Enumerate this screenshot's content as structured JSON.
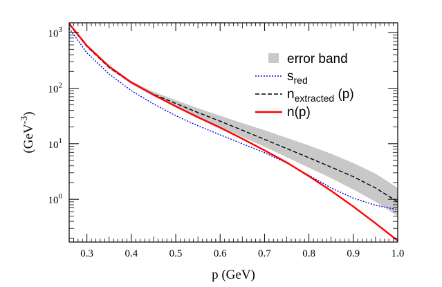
{
  "chart_data": {
    "type": "line",
    "xlabel": "p (GeV)",
    "ylabel": "(GeV",
    "ylabel_sup": "-3",
    "ylabel_close": ")",
    "xlim": [
      0.26,
      1.0
    ],
    "ylim": [
      0.17,
      1500
    ],
    "yscale": "log",
    "grid": false,
    "legend_position": "top-right",
    "x_ticks": [
      {
        "value": 0.3,
        "label": "0.3"
      },
      {
        "value": 0.4,
        "label": "0.4"
      },
      {
        "value": 0.5,
        "label": "0.5"
      },
      {
        "value": 0.6,
        "label": "0.6"
      },
      {
        "value": 0.7,
        "label": "0.7"
      },
      {
        "value": 0.8,
        "label": "0.8"
      },
      {
        "value": 0.9,
        "label": "0.9"
      },
      {
        "value": 1.0,
        "label": "1.0"
      }
    ],
    "y_ticks": [
      {
        "value": 1,
        "base": "10",
        "exp": "0"
      },
      {
        "value": 10,
        "base": "10",
        "exp": "1"
      },
      {
        "value": 100,
        "base": "10",
        "exp": "2"
      },
      {
        "value": 1000,
        "base": "10",
        "exp": "3"
      }
    ],
    "legend": [
      {
        "key": "error_band",
        "label": "error band",
        "sub": ""
      },
      {
        "key": "s_red",
        "label": "s",
        "sub": "red"
      },
      {
        "key": "n_extracted",
        "label": "n",
        "sub": "extracted",
        "suffix": " (p)"
      },
      {
        "key": "n_p",
        "label": "n(p)",
        "sub": ""
      }
    ],
    "series": [
      {
        "key": "s_red",
        "color": "#0000ee",
        "dash": "dotted",
        "x": [
          0.26,
          0.3,
          0.35,
          0.4,
          0.45,
          0.5,
          0.55,
          0.6,
          0.65,
          0.7,
          0.75,
          0.8,
          0.85,
          0.9,
          0.95,
          1.0
        ],
        "y": [
          1200,
          430,
          180,
          90,
          52,
          32,
          21,
          14.5,
          10,
          6.9,
          4.5,
          2.7,
          1.6,
          1.05,
          0.78,
          0.65
        ]
      },
      {
        "key": "n_extracted",
        "color": "#000000",
        "dash": "dashed",
        "x": [
          0.26,
          0.3,
          0.35,
          0.4,
          0.45,
          0.5,
          0.55,
          0.6,
          0.65,
          0.7,
          0.75,
          0.8,
          0.85,
          0.9,
          0.95,
          1.0
        ],
        "y": [
          1400,
          560,
          235,
          125,
          78,
          53,
          36.5,
          25.5,
          17.5,
          12,
          8.2,
          5.6,
          3.8,
          2.55,
          1.6,
          0.9
        ]
      },
      {
        "key": "n_p",
        "color": "#ff0000",
        "dash": "solid",
        "x": [
          0.26,
          0.3,
          0.35,
          0.4,
          0.45,
          0.5,
          0.55,
          0.6,
          0.65,
          0.7,
          0.75,
          0.8,
          0.85,
          0.9,
          0.95,
          1.0
        ],
        "y": [
          1450,
          580,
          245,
          127,
          76,
          47,
          30,
          19.5,
          12.3,
          7.6,
          4.6,
          2.6,
          1.42,
          0.74,
          0.37,
          0.18
        ]
      }
    ],
    "error_band": {
      "color": "#c8c8c8",
      "x": [
        0.26,
        0.3,
        0.35,
        0.4,
        0.45,
        0.5,
        0.55,
        0.6,
        0.65,
        0.7,
        0.75,
        0.8,
        0.85,
        0.9,
        0.95,
        1.0
      ],
      "lower": [
        1380,
        545,
        225,
        118,
        72,
        46,
        30,
        20,
        13.2,
        8.8,
        5.7,
        3.7,
        2.4,
        1.5,
        0.9,
        0.5
      ],
      "upper": [
        1430,
        575,
        246,
        133,
        86,
        61,
        43.5,
        32,
        23.5,
        17.5,
        12.8,
        9.3,
        6.6,
        4.5,
        2.9,
        1.6
      ]
    }
  }
}
